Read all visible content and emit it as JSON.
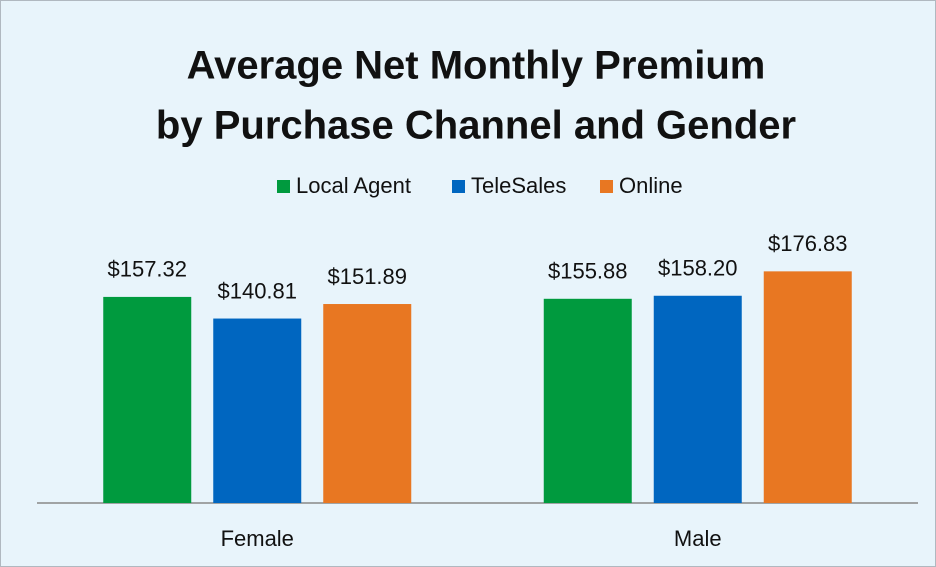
{
  "chart_data": {
    "type": "bar",
    "title": [
      "Average Net Monthly Premium",
      "by Purchase Channel and Gender"
    ],
    "categories": [
      "Female",
      "Male"
    ],
    "series": [
      {
        "name": "Local Agent",
        "color": "#009a3e",
        "values": [
          157.32,
          155.88
        ],
        "value_labels": [
          "$157.32",
          "$155.88"
        ]
      },
      {
        "name": "TeleSales",
        "color": "#0066c0",
        "values": [
          140.81,
          158.2
        ],
        "value_labels": [
          "$140.81",
          "$158.20"
        ]
      },
      {
        "name": "Online",
        "color": "#e87722",
        "values": [
          151.89,
          176.83
        ],
        "value_labels": [
          "$151.89",
          "$176.83"
        ]
      }
    ],
    "ylim": [
      0,
      200
    ],
    "legend": "top"
  }
}
